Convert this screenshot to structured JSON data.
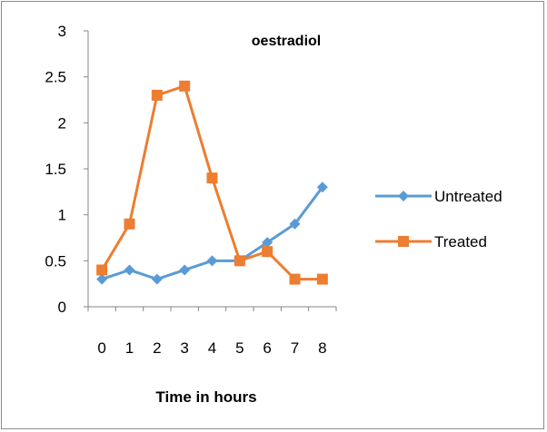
{
  "chart_data": {
    "type": "line",
    "title": "oestradiol",
    "xlabel": "Time in hours",
    "ylabel": "",
    "categories": [
      "0",
      "1",
      "2",
      "3",
      "4",
      "5",
      "6",
      "7",
      "8"
    ],
    "ylim": [
      0,
      3
    ],
    "yticks": [
      "0",
      "0.5",
      "1",
      "1.5",
      "2",
      "2.5",
      "3"
    ],
    "grid": false,
    "legend_position": "right",
    "series": [
      {
        "name": "Untreated",
        "values": [
          0.3,
          0.4,
          0.3,
          0.4,
          0.5,
          0.5,
          0.7,
          0.9,
          1.3
        ],
        "color": "#5b9bd5",
        "marker": "diamond"
      },
      {
        "name": "Treated",
        "values": [
          0.4,
          0.9,
          2.3,
          2.4,
          1.4,
          0.5,
          0.6,
          0.3,
          0.3
        ],
        "color": "#ed7d31",
        "marker": "square"
      }
    ]
  }
}
